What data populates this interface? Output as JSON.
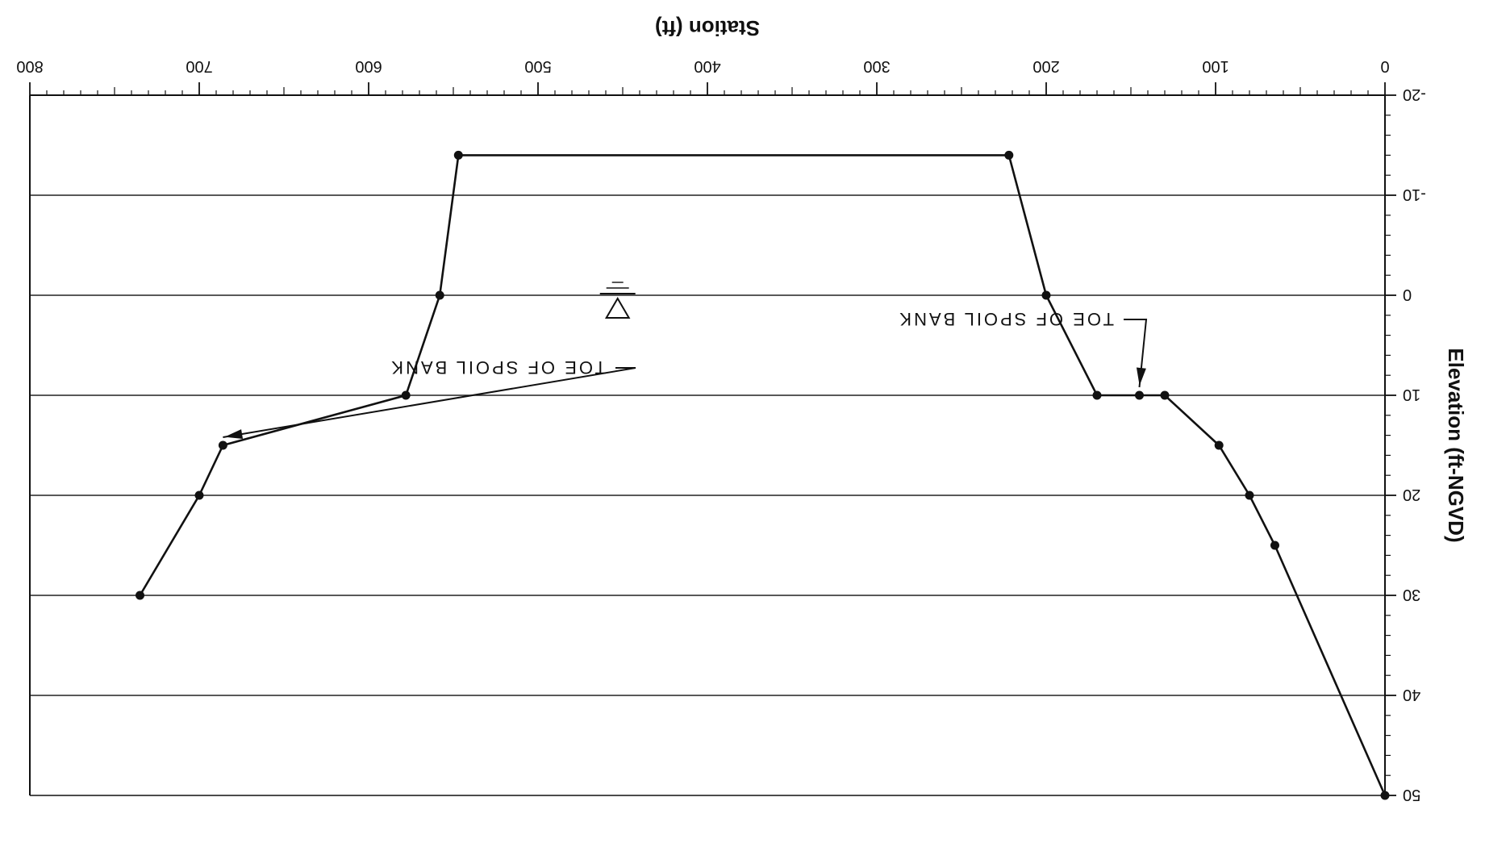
{
  "chart_data": {
    "type": "line",
    "orientation": "rotated-180",
    "xlabel": "Station (ft)",
    "ylabel": "Elevation (ft-NGVD)",
    "xlim": [
      0,
      800
    ],
    "ylim": [
      -20,
      50
    ],
    "x_ticks": [
      "0",
      "100",
      "200",
      "300",
      "400",
      "500",
      "600",
      "700",
      "800"
    ],
    "y_ticks": [
      "-20",
      "-10",
      "0",
      "10",
      "20",
      "30",
      "40",
      "50"
    ],
    "grid": "horizontal",
    "series": [
      {
        "points": [
          {
            "x": 0,
            "y": 50
          },
          {
            "x": 65,
            "y": 25
          },
          {
            "x": 80,
            "y": 20
          },
          {
            "x": 98,
            "y": 15
          },
          {
            "x": 130,
            "y": 10
          },
          {
            "x": 145,
            "y": 10
          },
          {
            "x": 170,
            "y": 10
          },
          {
            "x": 200,
            "y": 0
          },
          {
            "x": 222,
            "y": -14
          },
          {
            "x": 547,
            "y": -14
          },
          {
            "x": 558,
            "y": 0
          },
          {
            "x": 578,
            "y": 10
          },
          {
            "x": 686,
            "y": 15
          },
          {
            "x": 700,
            "y": 20
          },
          {
            "x": 735,
            "y": 30
          }
        ]
      }
    ],
    "annotations": [
      {
        "text": "TOE OF SPOIL BANK",
        "target": {
          "x": 145,
          "y": 10
        }
      },
      {
        "text": "TOE OF SPOIL BANK",
        "target": {
          "x": 686,
          "y": 15
        }
      }
    ],
    "water_surface_marker": {
      "x": 453,
      "y": 0
    }
  }
}
